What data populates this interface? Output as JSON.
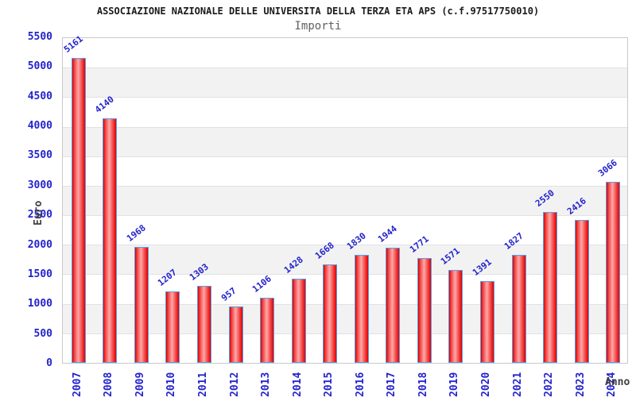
{
  "chart_data": {
    "type": "bar",
    "title": "ASSOCIAZIONE NAZIONALE DELLE UNIVERSITA DELLA TERZA ETA APS (c.f.97517750010)",
    "subtitle": "Importi",
    "xlabel": "Anno",
    "ylabel": "Euro",
    "categories": [
      "2007",
      "2008",
      "2009",
      "2010",
      "2011",
      "2012",
      "2013",
      "2014",
      "2015",
      "2016",
      "2017",
      "2018",
      "2019",
      "2020",
      "2021",
      "2022",
      "2023",
      "2024"
    ],
    "values": [
      5161,
      4140,
      1968,
      1207,
      1303,
      957,
      1106,
      1428,
      1668,
      1830,
      1944,
      1771,
      1571,
      1391,
      1827,
      2550,
      2416,
      3066
    ],
    "ylim": [
      0,
      5500
    ],
    "ytick_step": 500,
    "grid": true,
    "legend": "none",
    "colors": {
      "bar_fill": "#e32222",
      "bar_highlight": "#ffaaaa",
      "bar_border": "#55a0e6",
      "label_blue": "#2323cc",
      "band_gray": "#f2f2f2",
      "grid_line": "#e2e2e2",
      "title_color": "#1a1a1a",
      "subtitle_color": "#606060",
      "axis_title_color": "#404040"
    }
  }
}
